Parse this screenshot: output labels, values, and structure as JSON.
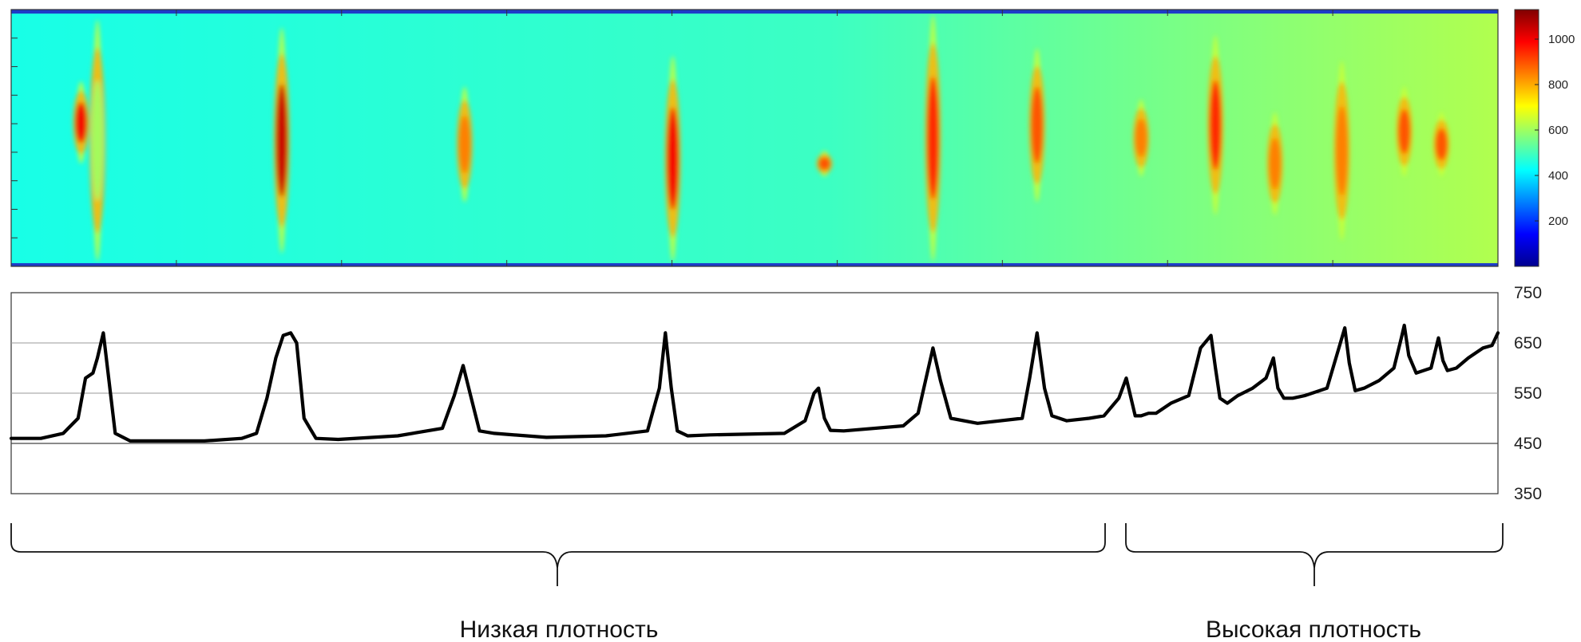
{
  "chart_data": [
    {
      "type": "heatmap",
      "title": "",
      "xlabel": "",
      "ylabel": "",
      "colorbar": {
        "colormap": "jet",
        "range": [
          0,
          1130
        ],
        "ticks": [
          200,
          400,
          600,
          800,
          1000
        ],
        "tick_labels": [
          "200",
          "400",
          "600",
          "800",
          "1000"
        ]
      },
      "background_level": 450,
      "right_side_level": 620,
      "hotspots": [
        {
          "x": 0.047,
          "y_top": 0.28,
          "y_bot": 0.6,
          "value": 1000
        },
        {
          "x": 0.058,
          "y_top": 0.04,
          "y_bot": 0.98,
          "value": 600
        },
        {
          "x": 0.182,
          "y_top": 0.07,
          "y_bot": 0.95,
          "value": 1050
        },
        {
          "x": 0.305,
          "y_top": 0.3,
          "y_bot": 0.75,
          "value": 850
        },
        {
          "x": 0.445,
          "y_top": 0.18,
          "y_bot": 0.98,
          "value": 1000
        },
        {
          "x": 0.547,
          "y_top": 0.55,
          "y_bot": 0.65,
          "value": 900
        },
        {
          "x": 0.62,
          "y_top": 0.02,
          "y_bot": 0.98,
          "value": 950
        },
        {
          "x": 0.69,
          "y_top": 0.15,
          "y_bot": 0.75,
          "value": 900
        },
        {
          "x": 0.76,
          "y_top": 0.35,
          "y_bot": 0.65,
          "value": 850
        },
        {
          "x": 0.81,
          "y_top": 0.1,
          "y_bot": 0.8,
          "value": 950
        },
        {
          "x": 0.85,
          "y_top": 0.4,
          "y_bot": 0.8,
          "value": 850
        },
        {
          "x": 0.895,
          "y_top": 0.2,
          "y_bot": 0.9,
          "value": 850
        },
        {
          "x": 0.937,
          "y_top": 0.3,
          "y_bot": 0.65,
          "value": 900
        },
        {
          "x": 0.962,
          "y_top": 0.4,
          "y_bot": 0.65,
          "value": 900
        }
      ]
    },
    {
      "type": "line",
      "title": "",
      "xlabel": "",
      "ylabel": "",
      "ylim": [
        350,
        750
      ],
      "yticks": [
        350,
        450,
        550,
        650,
        750
      ],
      "ytick_labels": [
        "350",
        "450",
        "550",
        "650",
        "750"
      ],
      "grid": true,
      "x": [
        0,
        0.02,
        0.035,
        0.045,
        0.05,
        0.055,
        0.058,
        0.062,
        0.07,
        0.08,
        0.1,
        0.13,
        0.155,
        0.165,
        0.172,
        0.178,
        0.183,
        0.188,
        0.192,
        0.197,
        0.205,
        0.22,
        0.26,
        0.29,
        0.298,
        0.304,
        0.309,
        0.315,
        0.325,
        0.36,
        0.4,
        0.428,
        0.436,
        0.44,
        0.444,
        0.448,
        0.455,
        0.47,
        0.52,
        0.534,
        0.54,
        0.543,
        0.547,
        0.551,
        0.56,
        0.6,
        0.61,
        0.615,
        0.62,
        0.625,
        0.632,
        0.65,
        0.68,
        0.685,
        0.69,
        0.695,
        0.7,
        0.71,
        0.725,
        0.735,
        0.745,
        0.75,
        0.756,
        0.76,
        0.765,
        0.77,
        0.78,
        0.792,
        0.8,
        0.807,
        0.81,
        0.813,
        0.818,
        0.825,
        0.835,
        0.844,
        0.849,
        0.852,
        0.856,
        0.862,
        0.87,
        0.885,
        0.893,
        0.897,
        0.9,
        0.904,
        0.91,
        0.92,
        0.93,
        0.935,
        0.937,
        0.94,
        0.945,
        0.955,
        0.96,
        0.963,
        0.966,
        0.972,
        0.98,
        0.99,
        0.996,
        1.0
      ],
      "y": [
        460,
        460,
        470,
        500,
        580,
        590,
        620,
        670,
        470,
        455,
        455,
        455,
        460,
        470,
        540,
        620,
        665,
        670,
        650,
        500,
        460,
        458,
        465,
        480,
        545,
        605,
        545,
        475,
        470,
        462,
        465,
        475,
        560,
        670,
        560,
        475,
        465,
        467,
        470,
        495,
        550,
        560,
        500,
        476,
        475,
        485,
        510,
        575,
        640,
        575,
        500,
        490,
        500,
        580,
        670,
        560,
        505,
        495,
        500,
        505,
        540,
        580,
        505,
        505,
        510,
        510,
        530,
        545,
        640,
        665,
        600,
        540,
        530,
        545,
        560,
        580,
        620,
        560,
        540,
        540,
        545,
        560,
        640,
        680,
        610,
        555,
        560,
        575,
        600,
        660,
        685,
        625,
        590,
        600,
        660,
        615,
        595,
        600,
        620,
        640,
        645,
        670
      ]
    }
  ],
  "groups": [
    {
      "label": "Низкая плотность"
    },
    {
      "label": "Высокая плотность"
    }
  ]
}
